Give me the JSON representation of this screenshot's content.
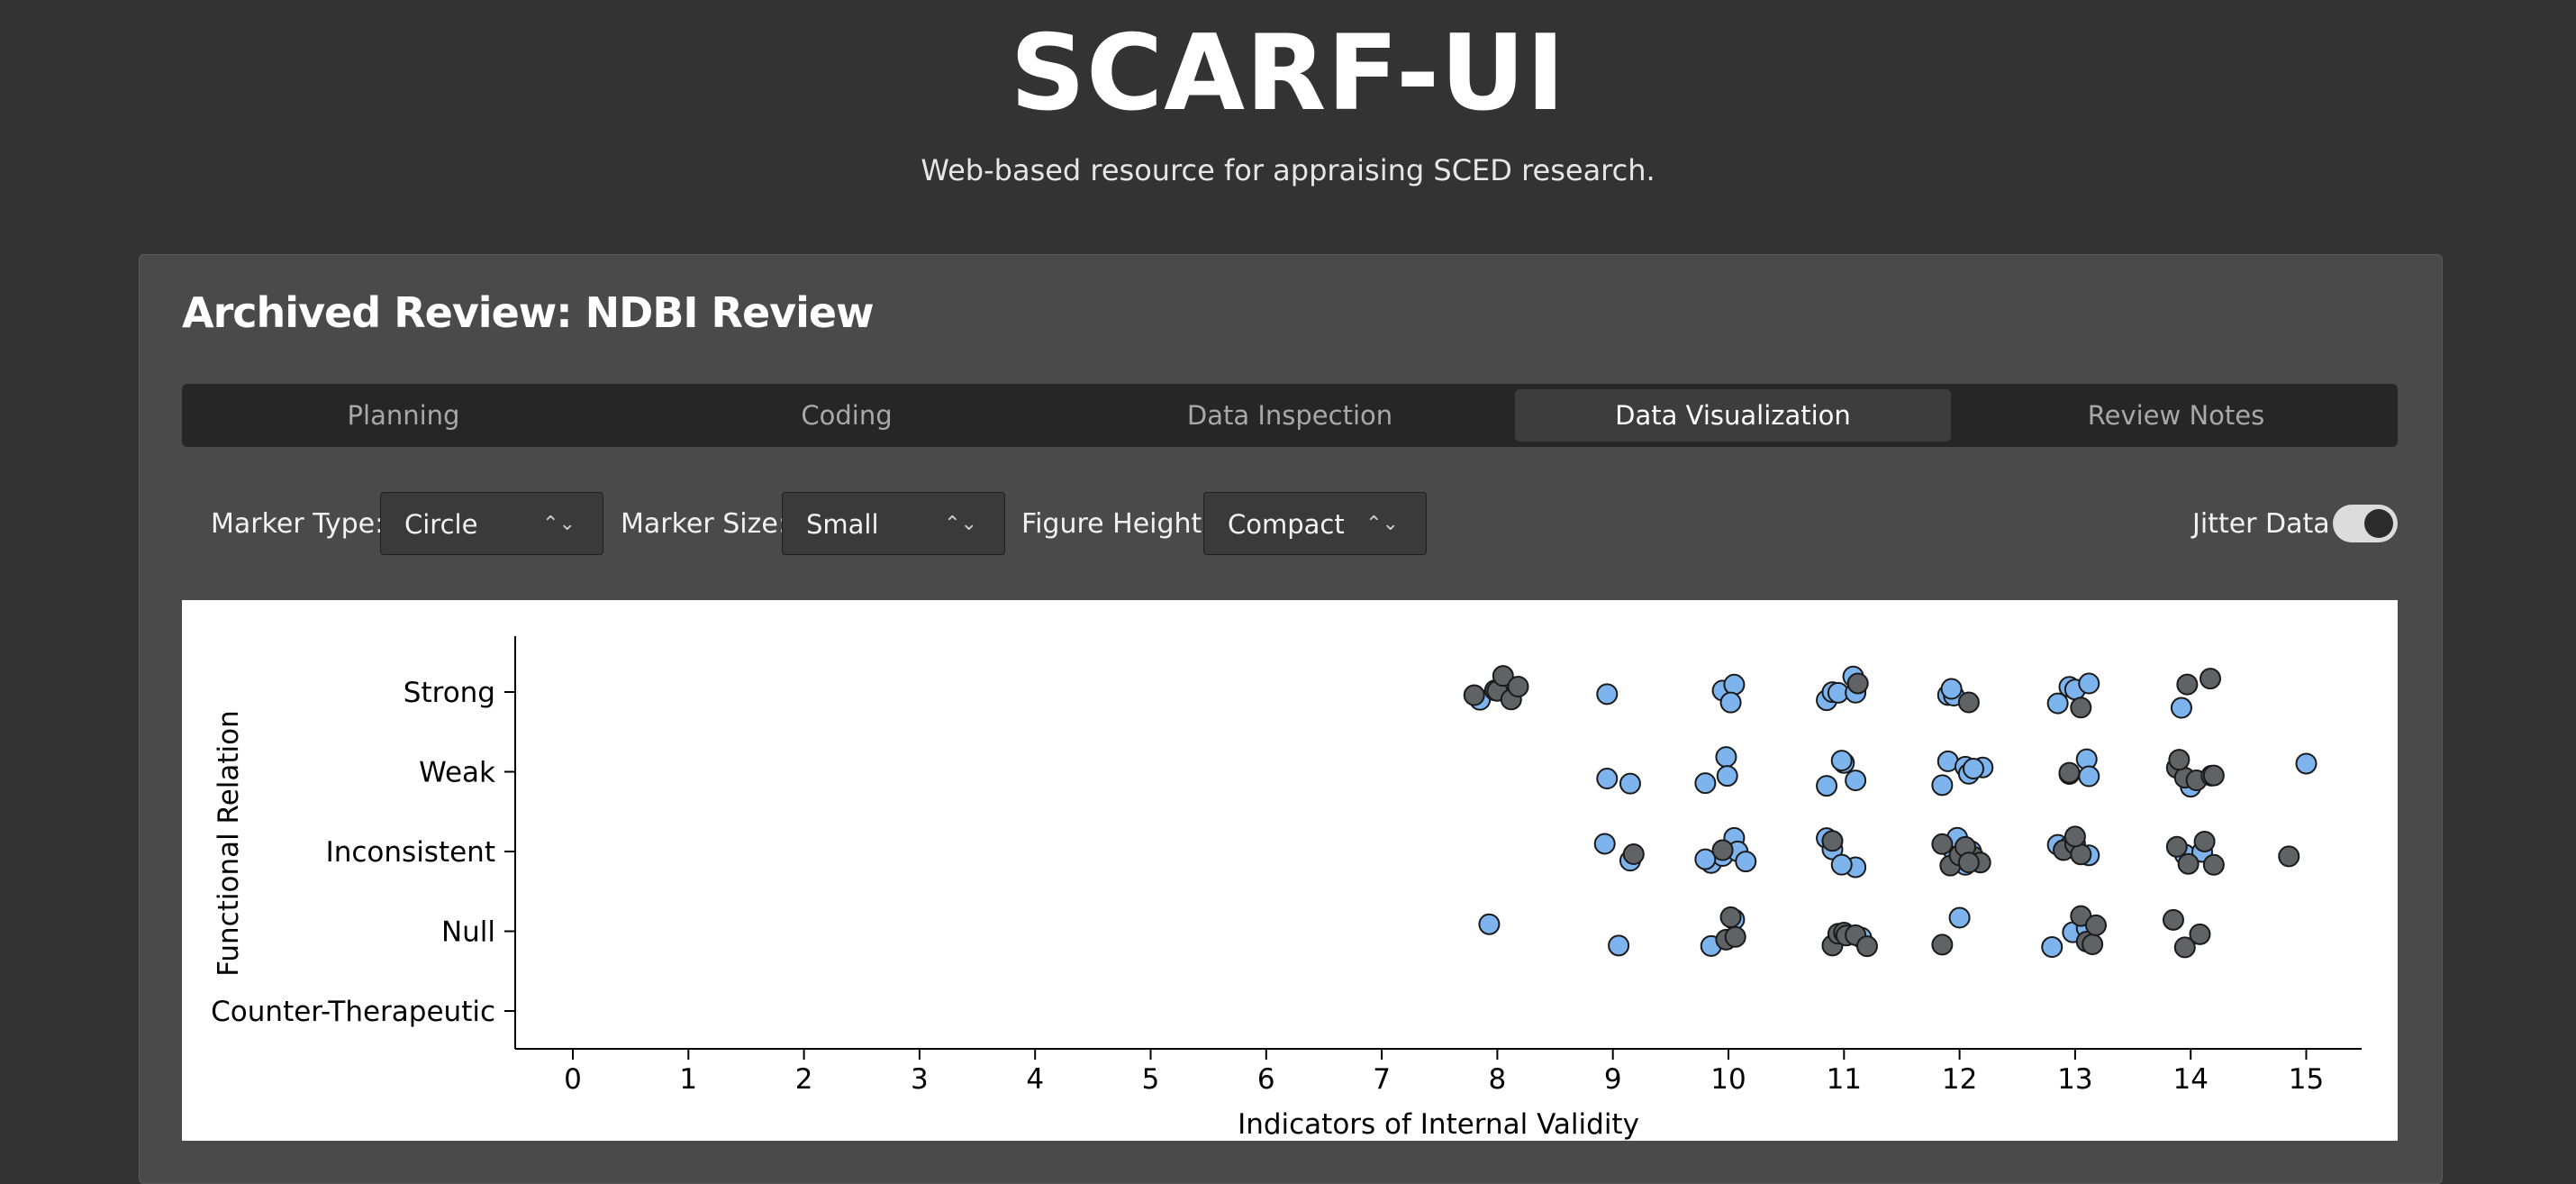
{
  "app": {
    "title": "SCARF-UI",
    "subtitle": "Web-based resource for appraising SCED research."
  },
  "review": {
    "title": "Archived Review: NDBI Review"
  },
  "tabs": [
    {
      "label": "Planning",
      "active": false
    },
    {
      "label": "Coding",
      "active": false
    },
    {
      "label": "Data Inspection",
      "active": false
    },
    {
      "label": "Data Visualization",
      "active": true
    },
    {
      "label": "Review Notes",
      "active": false
    }
  ],
  "controls": {
    "marker_type": {
      "label": "Marker Type:",
      "value": "Circle"
    },
    "marker_size": {
      "label": "Marker Size:",
      "value": "Small"
    },
    "figure_height": {
      "label": "Figure Height:",
      "value": "Compact"
    },
    "jitter": {
      "label": "Jitter Data",
      "enabled": true
    }
  },
  "colors": {
    "background": "#333333",
    "card": "#4a4a4a",
    "series_blue": "#7eb4ee",
    "series_gray": "#606366"
  },
  "chart_data": {
    "type": "scatter",
    "title": "",
    "xlabel": "Indicators of Internal Validity",
    "ylabel": "Functional Relation",
    "x_ticks": [
      0,
      1,
      2,
      3,
      4,
      5,
      6,
      7,
      8,
      9,
      10,
      11,
      12,
      13,
      14,
      15
    ],
    "xlim": [
      -0.5,
      15.5
    ],
    "categories": [
      "Strong",
      "Weak",
      "Inconsistent",
      "Null",
      "Counter-Therapeutic"
    ],
    "jittered": true,
    "series": [
      {
        "color": "#7eb4ee",
        "points": [
          {
            "x": 7.85,
            "y": "Strong"
          },
          {
            "x": 8.95,
            "y": "Strong"
          },
          {
            "x": 9.95,
            "y": "Strong"
          },
          {
            "x": 10.05,
            "y": "Strong"
          },
          {
            "x": 10.02,
            "y": "Strong"
          },
          {
            "x": 10.85,
            "y": "Strong"
          },
          {
            "x": 10.9,
            "y": "Strong"
          },
          {
            "x": 10.95,
            "y": "Strong"
          },
          {
            "x": 11.1,
            "y": "Strong"
          },
          {
            "x": 11.08,
            "y": "Strong"
          },
          {
            "x": 11.9,
            "y": "Strong"
          },
          {
            "x": 11.95,
            "y": "Strong"
          },
          {
            "x": 11.93,
            "y": "Strong"
          },
          {
            "x": 12.85,
            "y": "Strong"
          },
          {
            "x": 12.95,
            "y": "Strong"
          },
          {
            "x": 13.0,
            "y": "Strong"
          },
          {
            "x": 13.12,
            "y": "Strong"
          },
          {
            "x": 13.92,
            "y": "Strong"
          },
          {
            "x": 8.95,
            "y": "Weak"
          },
          {
            "x": 9.15,
            "y": "Weak"
          },
          {
            "x": 9.8,
            "y": "Weak"
          },
          {
            "x": 9.98,
            "y": "Weak"
          },
          {
            "x": 9.99,
            "y": "Weak"
          },
          {
            "x": 10.85,
            "y": "Weak"
          },
          {
            "x": 11.0,
            "y": "Weak"
          },
          {
            "x": 11.1,
            "y": "Weak"
          },
          {
            "x": 10.98,
            "y": "Weak"
          },
          {
            "x": 11.85,
            "y": "Weak"
          },
          {
            "x": 11.9,
            "y": "Weak"
          },
          {
            "x": 12.05,
            "y": "Weak"
          },
          {
            "x": 12.08,
            "y": "Weak"
          },
          {
            "x": 12.2,
            "y": "Weak"
          },
          {
            "x": 12.12,
            "y": "Weak"
          },
          {
            "x": 12.95,
            "y": "Weak"
          },
          {
            "x": 13.1,
            "y": "Weak"
          },
          {
            "x": 13.12,
            "y": "Weak"
          },
          {
            "x": 14.0,
            "y": "Weak"
          },
          {
            "x": 15.0,
            "y": "Weak"
          },
          {
            "x": 8.93,
            "y": "Inconsistent"
          },
          {
            "x": 9.15,
            "y": "Inconsistent"
          },
          {
            "x": 9.85,
            "y": "Inconsistent"
          },
          {
            "x": 9.95,
            "y": "Inconsistent"
          },
          {
            "x": 10.05,
            "y": "Inconsistent"
          },
          {
            "x": 10.08,
            "y": "Inconsistent"
          },
          {
            "x": 10.15,
            "y": "Inconsistent"
          },
          {
            "x": 9.8,
            "y": "Inconsistent"
          },
          {
            "x": 10.85,
            "y": "Inconsistent"
          },
          {
            "x": 10.9,
            "y": "Inconsistent"
          },
          {
            "x": 11.1,
            "y": "Inconsistent"
          },
          {
            "x": 10.98,
            "y": "Inconsistent"
          },
          {
            "x": 11.95,
            "y": "Inconsistent"
          },
          {
            "x": 12.02,
            "y": "Inconsistent"
          },
          {
            "x": 12.1,
            "y": "Inconsistent"
          },
          {
            "x": 11.98,
            "y": "Inconsistent"
          },
          {
            "x": 12.05,
            "y": "Inconsistent"
          },
          {
            "x": 12.85,
            "y": "Inconsistent"
          },
          {
            "x": 12.95,
            "y": "Inconsistent"
          },
          {
            "x": 13.12,
            "y": "Inconsistent"
          },
          {
            "x": 13.95,
            "y": "Inconsistent"
          },
          {
            "x": 14.1,
            "y": "Inconsistent"
          },
          {
            "x": 7.93,
            "y": "Null"
          },
          {
            "x": 9.05,
            "y": "Null"
          },
          {
            "x": 9.85,
            "y": "Null"
          },
          {
            "x": 10.05,
            "y": "Null"
          },
          {
            "x": 11.15,
            "y": "Null"
          },
          {
            "x": 12.0,
            "y": "Null"
          },
          {
            "x": 12.8,
            "y": "Null"
          },
          {
            "x": 12.98,
            "y": "Null"
          },
          {
            "x": 13.1,
            "y": "Null"
          }
        ]
      },
      {
        "color": "#606366",
        "points": [
          {
            "x": 7.8,
            "y": "Strong"
          },
          {
            "x": 7.98,
            "y": "Strong"
          },
          {
            "x": 8.0,
            "y": "Strong"
          },
          {
            "x": 8.05,
            "y": "Strong"
          },
          {
            "x": 8.12,
            "y": "Strong"
          },
          {
            "x": 8.18,
            "y": "Strong"
          },
          {
            "x": 11.12,
            "y": "Strong"
          },
          {
            "x": 12.08,
            "y": "Strong"
          },
          {
            "x": 13.05,
            "y": "Strong"
          },
          {
            "x": 13.97,
            "y": "Strong"
          },
          {
            "x": 14.17,
            "y": "Strong"
          },
          {
            "x": 12.95,
            "y": "Weak"
          },
          {
            "x": 13.88,
            "y": "Weak"
          },
          {
            "x": 13.95,
            "y": "Weak"
          },
          {
            "x": 14.05,
            "y": "Weak"
          },
          {
            "x": 14.18,
            "y": "Weak"
          },
          {
            "x": 14.2,
            "y": "Weak"
          },
          {
            "x": 13.9,
            "y": "Weak"
          },
          {
            "x": 9.95,
            "y": "Inconsistent"
          },
          {
            "x": 9.18,
            "y": "Inconsistent"
          },
          {
            "x": 10.9,
            "y": "Inconsistent"
          },
          {
            "x": 11.85,
            "y": "Inconsistent"
          },
          {
            "x": 11.92,
            "y": "Inconsistent"
          },
          {
            "x": 12.0,
            "y": "Inconsistent"
          },
          {
            "x": 12.12,
            "y": "Inconsistent"
          },
          {
            "x": 12.18,
            "y": "Inconsistent"
          },
          {
            "x": 12.05,
            "y": "Inconsistent"
          },
          {
            "x": 12.08,
            "y": "Inconsistent"
          },
          {
            "x": 12.9,
            "y": "Inconsistent"
          },
          {
            "x": 13.0,
            "y": "Inconsistent"
          },
          {
            "x": 13.05,
            "y": "Inconsistent"
          },
          {
            "x": 13.0,
            "y": "Inconsistent"
          },
          {
            "x": 13.88,
            "y": "Inconsistent"
          },
          {
            "x": 13.98,
            "y": "Inconsistent"
          },
          {
            "x": 14.12,
            "y": "Inconsistent"
          },
          {
            "x": 14.2,
            "y": "Inconsistent"
          },
          {
            "x": 14.85,
            "y": "Inconsistent"
          },
          {
            "x": 9.98,
            "y": "Null"
          },
          {
            "x": 10.02,
            "y": "Null"
          },
          {
            "x": 10.06,
            "y": "Null"
          },
          {
            "x": 10.9,
            "y": "Null"
          },
          {
            "x": 10.95,
            "y": "Null"
          },
          {
            "x": 11.0,
            "y": "Null"
          },
          {
            "x": 11.02,
            "y": "Null"
          },
          {
            "x": 11.1,
            "y": "Null"
          },
          {
            "x": 11.2,
            "y": "Null"
          },
          {
            "x": 11.85,
            "y": "Null"
          },
          {
            "x": 13.05,
            "y": "Null"
          },
          {
            "x": 13.1,
            "y": "Null"
          },
          {
            "x": 13.15,
            "y": "Null"
          },
          {
            "x": 13.18,
            "y": "Null"
          },
          {
            "x": 13.85,
            "y": "Null"
          },
          {
            "x": 13.95,
            "y": "Null"
          },
          {
            "x": 14.08,
            "y": "Null"
          }
        ]
      }
    ]
  }
}
